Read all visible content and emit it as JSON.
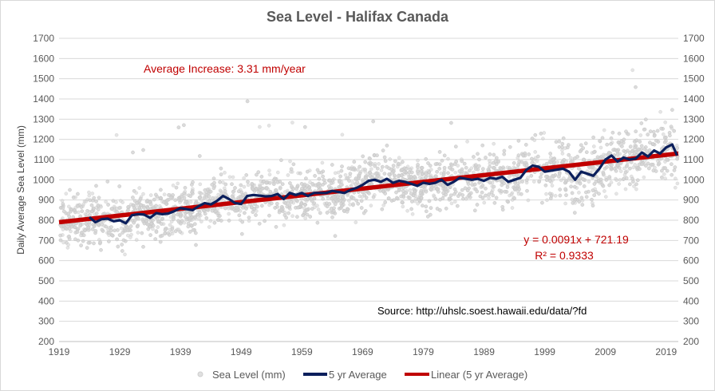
{
  "chart_data": {
    "type": "scatter",
    "title": "Sea Level - Halifax Canada",
    "ylabel": "Daily Average  Sea Level  (mm)",
    "xlabel": "",
    "xlim": [
      1919,
      2021
    ],
    "ylim": [
      200,
      1700
    ],
    "x_ticks": [
      "1919",
      "1929",
      "1939",
      "1949",
      "1959",
      "1969",
      "1979",
      "1989",
      "1999",
      "2009",
      "2019"
    ],
    "y_ticks": [
      "200",
      "300",
      "400",
      "500",
      "600",
      "700",
      "800",
      "900",
      "1000",
      "1100",
      "1200",
      "1300",
      "1400",
      "1500",
      "1600",
      "1700"
    ],
    "grid": "horizontal",
    "legend_position": "bottom",
    "series": [
      {
        "name": "Sea Level (mm)",
        "kind": "scatter",
        "color": "#bfbfbf"
      },
      {
        "name": "5 yr Average",
        "kind": "line",
        "color": "#0b1f5c",
        "x": [
          1924,
          1925,
          1926,
          1927,
          1928,
          1929,
          1930,
          1931,
          1932,
          1933,
          1934,
          1935,
          1936,
          1937,
          1938,
          1939,
          1940,
          1941,
          1942,
          1943,
          1944,
          1945,
          1946,
          1947,
          1948,
          1949,
          1950,
          1951,
          1952,
          1953,
          1954,
          1955,
          1956,
          1957,
          1958,
          1959,
          1960,
          1961,
          1962,
          1963,
          1964,
          1965,
          1966,
          1967,
          1968,
          1969,
          1970,
          1971,
          1972,
          1973,
          1974,
          1975,
          1976,
          1977,
          1978,
          1979,
          1980,
          1981,
          1982,
          1983,
          1984,
          1985,
          1986,
          1987,
          1988,
          1989,
          1990,
          1991,
          1992,
          1993,
          1994,
          1995,
          1996,
          1997,
          1998,
          1999,
          2000,
          2001,
          2002,
          2003,
          2004,
          2005,
          2006,
          2007,
          2008,
          2009,
          2010,
          2011,
          2012,
          2013,
          2014,
          2015,
          2016,
          2017,
          2018,
          2019,
          2020,
          2020.8
        ],
        "values": [
          815,
          790,
          805,
          808,
          795,
          800,
          785,
          825,
          830,
          828,
          812,
          835,
          830,
          833,
          845,
          860,
          855,
          850,
          870,
          885,
          878,
          895,
          920,
          905,
          885,
          880,
          920,
          925,
          922,
          918,
          920,
          930,
          905,
          935,
          925,
          935,
          920,
          935,
          935,
          935,
          945,
          940,
          935,
          950,
          960,
          975,
          995,
          1000,
          990,
          1005,
          985,
          995,
          990,
          980,
          970,
          985,
          980,
          985,
          1000,
          975,
          990,
          1010,
          1005,
          1000,
          1005,
          995,
          1010,
          1005,
          1015,
          990,
          1000,
          1010,
          1050,
          1070,
          1065,
          1040,
          1045,
          1050,
          1055,
          1040,
          1000,
          1040,
          1030,
          1020,
          1055,
          1100,
          1120,
          1090,
          1110,
          1100,
          1105,
          1135,
          1115,
          1145,
          1130,
          1160,
          1175,
          1120
        ]
      },
      {
        "name": "Linear (5 yr Average)",
        "kind": "trendline",
        "color": "#c00000",
        "x": [
          1919,
          2021
        ],
        "values": [
          790,
          1130
        ]
      }
    ],
    "annotations": {
      "average_increase": "Average Increase: 3.31 mm/year",
      "equation": "y = 0.0091x + 721.19",
      "r_squared": "R² = 0.9333",
      "source": "Source: http://uhslc.soest.hawaii.edu/data/?fd"
    }
  }
}
